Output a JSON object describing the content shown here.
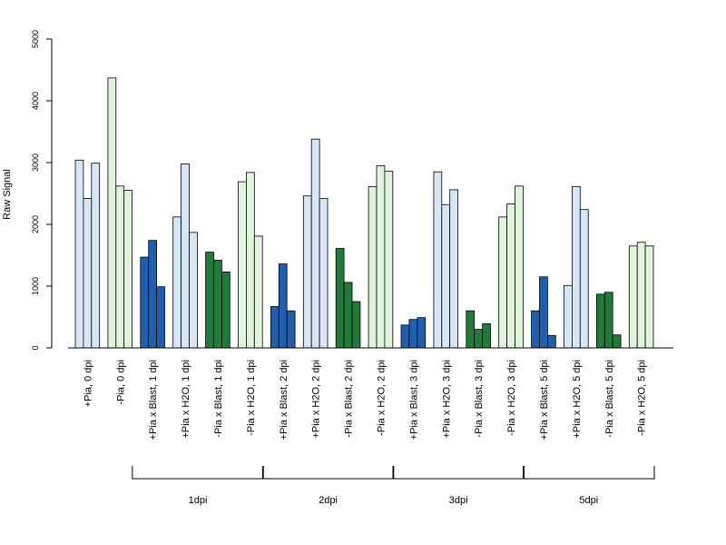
{
  "chart_data": {
    "type": "bar",
    "title": "",
    "ylabel": "Raw Signal",
    "xlabel": "",
    "ylim": [
      0,
      5000
    ],
    "yticks": [
      0,
      1000,
      2000,
      3000,
      4000,
      5000
    ],
    "grid": false,
    "legend": "none",
    "categories": [
      "+Pia, 0 dpi",
      "-Pia, 0 dpi",
      "+Pia x Blast, 1 dpi",
      "+Pia x H2O, 1 dpi",
      "-Pia x Blast, 1 dpi",
      "-Pia x H2O, 1 dpi",
      "+Pia x Blast, 2 dpi",
      "+Pia x H2O, 2 dpi",
      "-Pia x Blast, 2 dpi",
      "-Pia x H2O, 2 dpi",
      "+Pia x Blast, 3 dpi",
      "+Pia x H2O, 3 dpi",
      "-Pia x Blast, 3 dpi",
      "-Pia x H2O, 3 dpi",
      "+Pia x Blast, 5 dpi",
      "+Pia x H2O, 5 dpi",
      "-Pia x Blast, 5 dpi",
      "-Pia x H2O, 5 dpi"
    ],
    "replicates": [
      [
        3040,
        2420,
        2990
      ],
      [
        4370,
        2620,
        2550
      ],
      [
        1470,
        1740,
        990
      ],
      [
        2120,
        2980,
        1870
      ],
      [
        1550,
        1420,
        1230
      ],
      [
        2690,
        2840,
        1810
      ],
      [
        670,
        1360,
        600
      ],
      [
        2460,
        3380,
        2420
      ],
      [
        1610,
        1060,
        750
      ],
      [
        2610,
        2950,
        2860
      ],
      [
        370,
        460,
        490
      ],
      [
        2850,
        2320,
        2560
      ],
      [
        600,
        300,
        390
      ],
      [
        2120,
        2330,
        2620
      ],
      [
        600,
        1150,
        200
      ],
      [
        1010,
        2610,
        2240
      ],
      [
        870,
        900,
        210
      ],
      [
        1650,
        1710,
        1650
      ]
    ],
    "bar_colors": [
      "#d7e6f5",
      "#e0f4dc",
      "#1f5fae",
      "#d7e6f5",
      "#217a39",
      "#e0f4dc",
      "#1f5fae",
      "#d7e6f5",
      "#217a39",
      "#e0f4dc",
      "#1f5fae",
      "#d7e6f5",
      "#217a39",
      "#e0f4dc",
      "#1f5fae",
      "#d7e6f5",
      "#217a39",
      "#e0f4dc"
    ],
    "groups": [
      {
        "label": "1dpi",
        "from": 2,
        "to": 5
      },
      {
        "label": "2dpi",
        "from": 6,
        "to": 9
      },
      {
        "label": "3dpi",
        "from": 10,
        "to": 13
      },
      {
        "label": "5dpi",
        "from": 14,
        "to": 17
      }
    ]
  }
}
